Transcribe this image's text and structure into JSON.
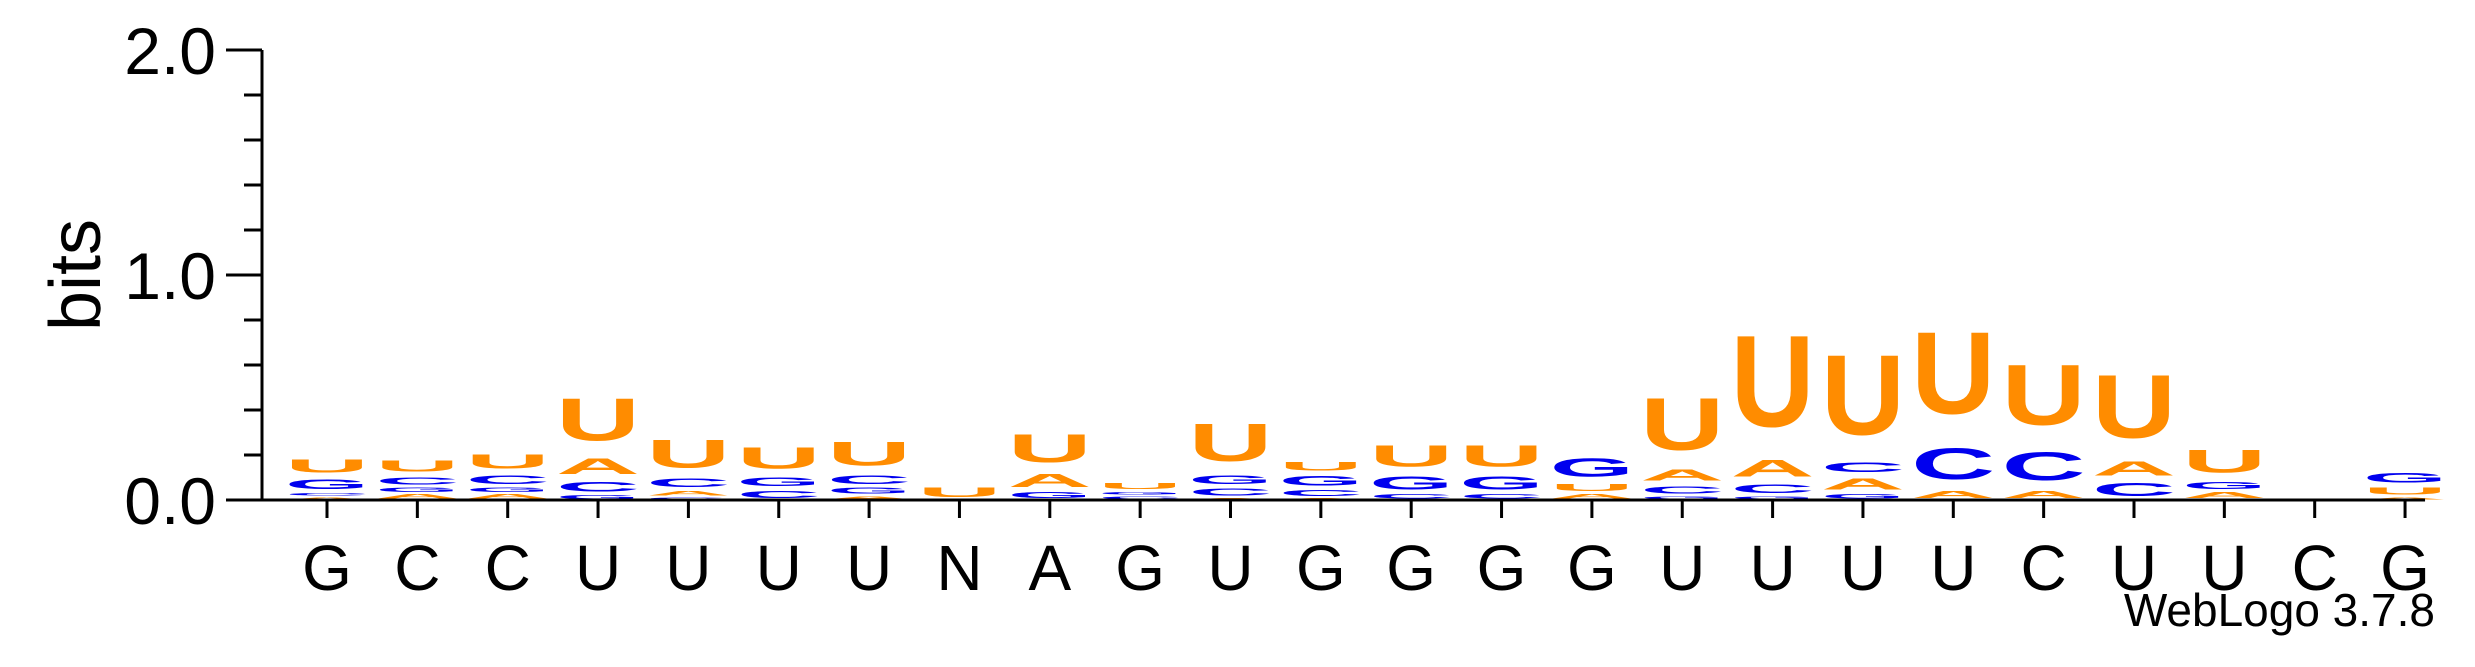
{
  "chart_data": {
    "type": "sequence-logo",
    "ylabel": "bits",
    "ylim": [
      0,
      2.0
    ],
    "yticks": [
      {
        "value": 0.0,
        "label": "0.0"
      },
      {
        "value": 1.0,
        "label": "1.0"
      },
      {
        "value": 2.0,
        "label": "2.0"
      }
    ],
    "credit": "WebLogo 3.7.8",
    "colors": {
      "U": "#ff8c00",
      "A": "#ff8c00",
      "C": "#0000ee",
      "G": "#0000ee"
    },
    "positions": [
      {
        "label": "G",
        "stack": [
          {
            "letter": "A",
            "height": 0.015
          },
          {
            "letter": "C",
            "height": 0.02
          },
          {
            "letter": "G",
            "height": 0.07
          },
          {
            "letter": "U",
            "height": 0.09
          }
        ]
      },
      {
        "label": "C",
        "stack": [
          {
            "letter": "A",
            "height": 0.03
          },
          {
            "letter": "G",
            "height": 0.03
          },
          {
            "letter": "C",
            "height": 0.05
          },
          {
            "letter": "U",
            "height": 0.08
          }
        ]
      },
      {
        "label": "C",
        "stack": [
          {
            "letter": "A",
            "height": 0.03
          },
          {
            "letter": "G",
            "height": 0.03
          },
          {
            "letter": "C",
            "height": 0.06
          },
          {
            "letter": "U",
            "height": 0.1
          }
        ]
      },
      {
        "label": "U",
        "stack": [
          {
            "letter": "G",
            "height": 0.025
          },
          {
            "letter": "C",
            "height": 0.07
          },
          {
            "letter": "A",
            "height": 0.11
          },
          {
            "letter": "U",
            "height": 0.3
          }
        ]
      },
      {
        "label": "U",
        "stack": [
          {
            "letter": "G",
            "height": 0.015
          },
          {
            "letter": "A",
            "height": 0.03
          },
          {
            "letter": "C",
            "height": 0.06
          },
          {
            "letter": "U",
            "height": 0.2
          }
        ]
      },
      {
        "label": "U",
        "stack": [
          {
            "letter": "C",
            "height": 0.05
          },
          {
            "letter": "G",
            "height": 0.06
          },
          {
            "letter": "U",
            "height": 0.15
          }
        ]
      },
      {
        "label": "U",
        "stack": [
          {
            "letter": "A",
            "height": 0.02
          },
          {
            "letter": "G",
            "height": 0.04
          },
          {
            "letter": "C",
            "height": 0.06
          },
          {
            "letter": "U",
            "height": 0.17
          }
        ]
      },
      {
        "label": "N",
        "stack": [
          {
            "letter": "U",
            "height": 0.07
          }
        ]
      },
      {
        "label": "A",
        "stack": [
          {
            "letter": "G",
            "height": 0.04
          },
          {
            "letter": "A",
            "height": 0.09
          },
          {
            "letter": "U",
            "height": 0.2
          }
        ]
      },
      {
        "label": "G",
        "stack": [
          {
            "letter": "C",
            "height": 0.02
          },
          {
            "letter": "G",
            "height": 0.02
          },
          {
            "letter": "U",
            "height": 0.04
          }
        ]
      },
      {
        "label": "U",
        "stack": [
          {
            "letter": "A",
            "height": 0.01
          },
          {
            "letter": "C",
            "height": 0.05
          },
          {
            "letter": "G",
            "height": 0.06
          },
          {
            "letter": "U",
            "height": 0.27
          }
        ]
      },
      {
        "label": "G",
        "stack": [
          {
            "letter": "A",
            "height": 0.01
          },
          {
            "letter": "C",
            "height": 0.04
          },
          {
            "letter": "G",
            "height": 0.07
          },
          {
            "letter": "U",
            "height": 0.06
          }
        ]
      },
      {
        "label": "G",
        "stack": [
          {
            "letter": "C",
            "height": 0.03
          },
          {
            "letter": "G",
            "height": 0.09
          },
          {
            "letter": "U",
            "height": 0.15
          }
        ]
      },
      {
        "label": "G",
        "stack": [
          {
            "letter": "C",
            "height": 0.03
          },
          {
            "letter": "G",
            "height": 0.09
          },
          {
            "letter": "U",
            "height": 0.15
          }
        ]
      },
      {
        "label": "G",
        "stack": [
          {
            "letter": "A",
            "height": 0.03
          },
          {
            "letter": "U",
            "height": 0.05
          },
          {
            "letter": "G",
            "height": 0.13
          }
        ]
      },
      {
        "label": "U",
        "stack": [
          {
            "letter": "G",
            "height": 0.02
          },
          {
            "letter": "C",
            "height": 0.05
          },
          {
            "letter": "A",
            "height": 0.08
          },
          {
            "letter": "U",
            "height": 0.37
          }
        ]
      },
      {
        "label": "U",
        "stack": [
          {
            "letter": "G",
            "height": 0.02
          },
          {
            "letter": "C",
            "height": 0.06
          },
          {
            "letter": "A",
            "height": 0.12
          },
          {
            "letter": "U",
            "height": 0.65
          }
        ]
      },
      {
        "label": "U",
        "stack": [
          {
            "letter": "G",
            "height": 0.03
          },
          {
            "letter": "A",
            "height": 0.08
          },
          {
            "letter": "C",
            "height": 0.07
          },
          {
            "letter": "U",
            "height": 0.57
          }
        ]
      },
      {
        "label": "U",
        "stack": [
          {
            "letter": "A",
            "height": 0.05
          },
          {
            "letter": "C",
            "height": 0.22
          },
          {
            "letter": "U",
            "height": 0.58
          }
        ]
      },
      {
        "label": "C",
        "stack": [
          {
            "letter": "A",
            "height": 0.05
          },
          {
            "letter": "C",
            "height": 0.2
          },
          {
            "letter": "U",
            "height": 0.43
          }
        ]
      },
      {
        "label": "U",
        "stack": [
          {
            "letter": "C",
            "height": 0.09
          },
          {
            "letter": "A",
            "height": 0.1
          },
          {
            "letter": "U",
            "height": 0.45
          }
        ]
      },
      {
        "label": "U",
        "stack": [
          {
            "letter": "A",
            "height": 0.04
          },
          {
            "letter": "G",
            "height": 0.05
          },
          {
            "letter": "U",
            "height": 0.16
          }
        ]
      },
      {
        "label": "C",
        "stack": []
      },
      {
        "label": "G",
        "stack": [
          {
            "letter": "A",
            "height": 0.015
          },
          {
            "letter": "U",
            "height": 0.05
          },
          {
            "letter": "G",
            "height": 0.07
          }
        ]
      }
    ]
  }
}
